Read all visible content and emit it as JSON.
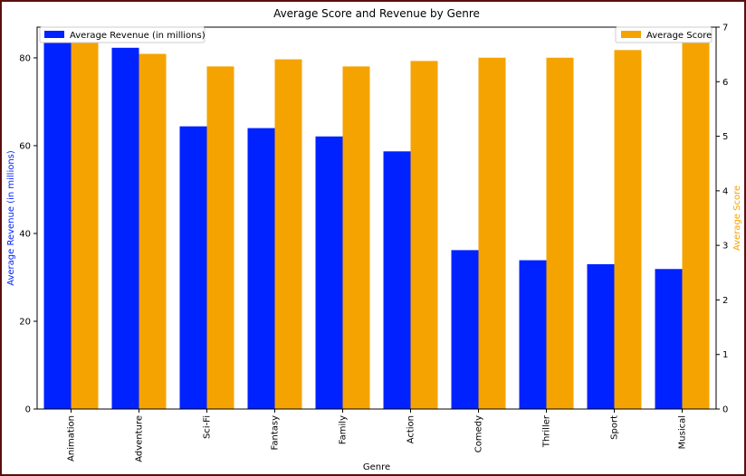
{
  "chart_data": {
    "type": "bar",
    "title": "Average Score and Revenue by Genre",
    "xlabel": "Genre",
    "categories": [
      "Animation",
      "Adventure",
      "Sci-Fi",
      "Fantasy",
      "Family",
      "Action",
      "Comedy",
      "Thriller",
      "Sport",
      "Musical"
    ],
    "series": [
      {
        "name": "Average Revenue (in millions)",
        "axis": "left",
        "color": "#0022ff",
        "values": [
          87.0,
          82.3,
          64.4,
          64.0,
          62.1,
          58.7,
          36.2,
          33.9,
          33.0,
          31.9
        ]
      },
      {
        "name": "Average Score",
        "axis": "right",
        "color": "#f5a300",
        "values": [
          6.88,
          6.51,
          6.28,
          6.41,
          6.28,
          6.38,
          6.44,
          6.44,
          6.58,
          6.97
        ]
      }
    ],
    "left_axis": {
      "label": "Average Revenue (in millions)",
      "label_color": "#0022ff",
      "ylim": [
        0,
        87
      ],
      "ticks": [
        0,
        20,
        40,
        60,
        80
      ]
    },
    "right_axis": {
      "label": "Average Score",
      "label_color": "#f5a300",
      "ylim": [
        0,
        7.0
      ],
      "ticks": [
        0,
        1,
        2,
        3,
        4,
        5,
        6,
        7
      ]
    },
    "legends": {
      "left": "upper-left",
      "right": "upper-right"
    },
    "grid": false
  }
}
